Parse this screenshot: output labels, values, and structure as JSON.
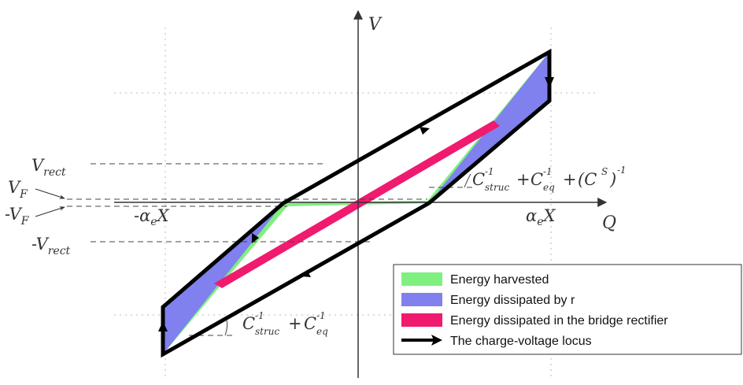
{
  "colors": {
    "harvested": "#7ff07f",
    "dissipated_r": "#8080ee",
    "rectifier": "#f01a6e",
    "locus": "#000000",
    "grid": "#b8b8b8",
    "dash": "#444444",
    "axis": "#333333"
  },
  "axes": {
    "v_label": "V",
    "q_label": "Q"
  },
  "labels": {
    "v_rect_main": "V",
    "v_rect_sub": "rect",
    "v_f_main": "V",
    "v_f_sub": "F",
    "neg_v_f_main": "-V",
    "neg_v_f_sub": "F",
    "neg_v_rect_main": "-V",
    "neg_v_rect_sub": "rect",
    "neg_alpha_x_a": "-α",
    "neg_alpha_x_sub": "e",
    "neg_alpha_x_b": "X",
    "alpha_x_a": "α",
    "alpha_x_sub": "e",
    "alpha_x_b": "X"
  },
  "slope_upper": {
    "c1": "C",
    "c1_sup": "-1",
    "c1_sub": "struc",
    "plus1": "+",
    "c2": "C",
    "c2_sup": "-1",
    "c2_sub": "eq",
    "plus2": "+",
    "c3_open": "(C",
    "c3_sup": "S",
    "c3_close": ")",
    "c3_outer_sup": "-1"
  },
  "slope_lower": {
    "c1": "C",
    "c1_sup": "-1",
    "c1_sub": "struc",
    "plus": "+",
    "c2": "C",
    "c2_sup": "-1",
    "c2_sub": "eq"
  },
  "legend": {
    "items": [
      {
        "label": "Energy harvested",
        "color": "#7ff07f"
      },
      {
        "label": "Energy dissipated by r",
        "color": "#8080ee"
      },
      {
        "label": "Energy dissipated in the bridge rectifier",
        "color": "#f01a6e"
      },
      {
        "label": "The charge-voltage locus",
        "color": "#000000"
      }
    ]
  }
}
